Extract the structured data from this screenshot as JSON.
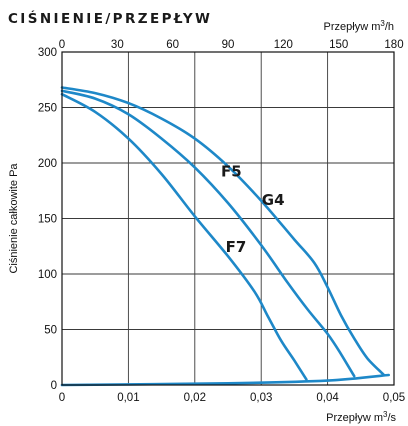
{
  "title": "CIŚNIENIE/PRZEPŁYW",
  "chart_data": {
    "type": "line",
    "title": "CIŚNIENIE/PRZEPŁYW",
    "ylabel": "Ciśnienie całkowite Pa",
    "xlabel_bottom": "Przepływ m³/s",
    "xlabel_top": "Przepływ m³/h",
    "x_bottom": {
      "lim": [
        0,
        0.05
      ],
      "ticks": [
        "0",
        "0,01",
        "0,02",
        "0,03",
        "0,04",
        "0,05"
      ]
    },
    "x_top": {
      "lim": [
        0,
        180
      ],
      "ticks": [
        "0",
        "30",
        "60",
        "90",
        "120",
        "150",
        "180"
      ]
    },
    "y": {
      "lim": [
        0,
        300
      ],
      "ticks": [
        "0",
        "50",
        "100",
        "150",
        "200",
        "250",
        "300"
      ]
    },
    "grid": true,
    "series": [
      {
        "name": "G4",
        "color": "#1e88c8",
        "x": [
          0,
          0.005,
          0.01,
          0.015,
          0.02,
          0.025,
          0.03,
          0.035,
          0.038,
          0.04,
          0.042,
          0.044,
          0.046,
          0.0485
        ],
        "y": [
          268,
          263,
          254,
          240,
          222,
          197,
          166,
          131,
          110,
          88,
          63,
          42,
          24,
          9
        ]
      },
      {
        "name": "F5",
        "color": "#1e88c8",
        "x": [
          0,
          0.005,
          0.01,
          0.015,
          0.02,
          0.025,
          0.03,
          0.034,
          0.037,
          0.04,
          0.042,
          0.044
        ],
        "y": [
          265,
          258,
          244,
          222,
          196,
          164,
          126,
          92,
          68,
          46,
          28,
          8
        ]
      },
      {
        "name": "F7",
        "color": "#1e88c8",
        "x": [
          0,
          0.005,
          0.01,
          0.015,
          0.02,
          0.025,
          0.029,
          0.031,
          0.033,
          0.035,
          0.0368
        ],
        "y": [
          262,
          246,
          222,
          190,
          152,
          116,
          84,
          62,
          40,
          22,
          5
        ]
      },
      {
        "name": "",
        "color": "#1e88c8",
        "x": [
          0,
          0.025,
          0.04,
          0.0492
        ],
        "y": [
          0,
          1.5,
          4,
          9
        ]
      }
    ]
  }
}
